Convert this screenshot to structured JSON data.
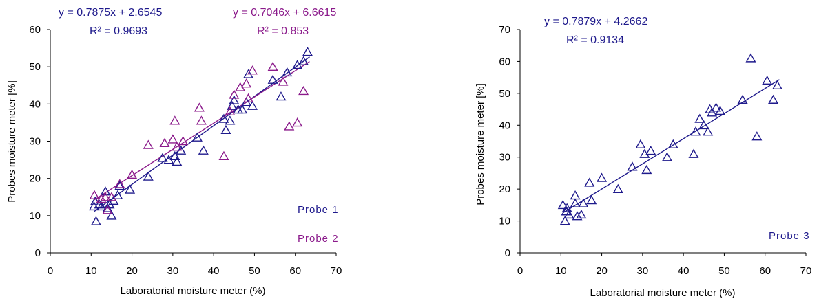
{
  "colors": {
    "probe1": "#1f1a8c",
    "probe2": "#8b1a8b",
    "probe3": "#1f1a8c",
    "axis": "#000000"
  },
  "chart_data": [
    {
      "type": "scatter",
      "xlabel": "Laboratorial moisture meter (%)",
      "ylabel": "Probes moisture meter [%]",
      "xlim": [
        0,
        70
      ],
      "ylim": [
        0,
        60
      ],
      "xticks": [
        "0",
        "10",
        "20",
        "30",
        "40",
        "50",
        "60",
        "70"
      ],
      "yticks": [
        "0",
        "10",
        "20",
        "30",
        "40",
        "50",
        "60"
      ],
      "series": [
        {
          "name": "Probe 1",
          "color_key": "probe1",
          "equation": "y = 0.7875x + 2.6545",
          "r2": "R² = 0.9693",
          "trend": {
            "slope": 0.7875,
            "intercept": 2.6545,
            "x_range": [
              10.7,
              63.5
            ]
          },
          "points": [
            [
              10.7,
              12.5
            ],
            [
              11,
              13.8
            ],
            [
              11.2,
              8.5
            ],
            [
              12,
              13
            ],
            [
              12.5,
              12.5
            ],
            [
              13.5,
              16.5
            ],
            [
              14,
              12
            ],
            [
              14.5,
              13
            ],
            [
              15,
              10
            ],
            [
              15.5,
              14
            ],
            [
              16.5,
              15.5
            ],
            [
              17,
              18
            ],
            [
              19.5,
              17
            ],
            [
              24,
              20.5
            ],
            [
              27.5,
              25.5
            ],
            [
              29,
              25
            ],
            [
              30.5,
              26
            ],
            [
              31,
              24.5
            ],
            [
              32,
              27.5
            ],
            [
              36,
              31
            ],
            [
              37.5,
              27.5
            ],
            [
              42.5,
              36
            ],
            [
              43,
              33
            ],
            [
              44,
              35.5
            ],
            [
              44.5,
              39.5
            ],
            [
              45,
              41
            ],
            [
              46,
              38.5
            ],
            [
              47,
              38.5
            ],
            [
              48,
              40.5
            ],
            [
              48.5,
              48
            ],
            [
              49.5,
              39.5
            ],
            [
              54.5,
              46.5
            ],
            [
              56.5,
              42
            ],
            [
              58,
              48.5
            ],
            [
              60.5,
              50.5
            ],
            [
              62,
              51.5
            ],
            [
              63,
              54
            ]
          ]
        },
        {
          "name": "Probe 2",
          "color_key": "probe2",
          "equation": "y = 0.7046x + 6.6615",
          "r2": "R² = 0.853",
          "trend": {
            "slope": 0.7046,
            "intercept": 6.6615,
            "x_range": [
              10.7,
              63.5
            ]
          },
          "points": [
            [
              10.8,
              15.5
            ],
            [
              12.5,
              14.5
            ],
            [
              13.5,
              15
            ],
            [
              14,
              11.5
            ],
            [
              15,
              15
            ],
            [
              17,
              18.5
            ],
            [
              20,
              21
            ],
            [
              24,
              29
            ],
            [
              28,
              29.5
            ],
            [
              30,
              30.5
            ],
            [
              30.5,
              35.5
            ],
            [
              31,
              28.5
            ],
            [
              32.5,
              30
            ],
            [
              36.5,
              39
            ],
            [
              37,
              35.5
            ],
            [
              42.5,
              26
            ],
            [
              44,
              38
            ],
            [
              45,
              42.5
            ],
            [
              46.5,
              44.5
            ],
            [
              48,
              45.5
            ],
            [
              48.5,
              41.5
            ],
            [
              49.5,
              49
            ],
            [
              54.5,
              50
            ],
            [
              57,
              46
            ],
            [
              58.5,
              34
            ],
            [
              60.5,
              35
            ],
            [
              62,
              43.5
            ]
          ]
        }
      ],
      "annotations": [
        "Probe 1",
        "Probe 2"
      ]
    },
    {
      "type": "scatter",
      "xlabel": "Laboratorial moisture meter (%)",
      "ylabel": "Probes moisture meter [%]",
      "xlim": [
        0,
        70
      ],
      "ylim": [
        0,
        70
      ],
      "xticks": [
        "0",
        "10",
        "20",
        "30",
        "40",
        "50",
        "60",
        "70"
      ],
      "yticks": [
        "0",
        "10",
        "20",
        "30",
        "40",
        "50",
        "60",
        "70"
      ],
      "series": [
        {
          "name": "Probe 3",
          "color_key": "probe3",
          "equation": "y = 0.7879x + 4.2662",
          "r2": "R² = 0.9134",
          "trend": {
            "slope": 0.7879,
            "intercept": 4.2662,
            "x_range": [
              10.5,
              63.5
            ]
          },
          "points": [
            [
              10.5,
              15
            ],
            [
              11,
              10
            ],
            [
              11.3,
              13
            ],
            [
              11.5,
              14
            ],
            [
              12,
              12
            ],
            [
              13.5,
              15.5
            ],
            [
              13.5,
              18
            ],
            [
              14,
              11.5
            ],
            [
              15,
              12
            ],
            [
              15.5,
              15.5
            ],
            [
              17,
              22
            ],
            [
              17.5,
              16.5
            ],
            [
              20,
              23.5
            ],
            [
              24,
              20
            ],
            [
              27.5,
              27
            ],
            [
              29.5,
              34
            ],
            [
              30.5,
              31
            ],
            [
              31,
              26
            ],
            [
              32,
              32
            ],
            [
              36,
              30
            ],
            [
              37.5,
              34
            ],
            [
              42.5,
              31
            ],
            [
              43,
              38
            ],
            [
              44,
              42
            ],
            [
              45,
              40
            ],
            [
              46,
              38
            ],
            [
              46.5,
              45
            ],
            [
              47,
              44
            ],
            [
              48,
              45.5
            ],
            [
              49,
              44.5
            ],
            [
              54.5,
              48
            ],
            [
              56.5,
              61
            ],
            [
              58,
              36.5
            ],
            [
              60.5,
              54
            ],
            [
              62,
              48
            ],
            [
              63,
              52.5
            ]
          ]
        }
      ],
      "annotations": [
        "Probe 3"
      ]
    }
  ]
}
